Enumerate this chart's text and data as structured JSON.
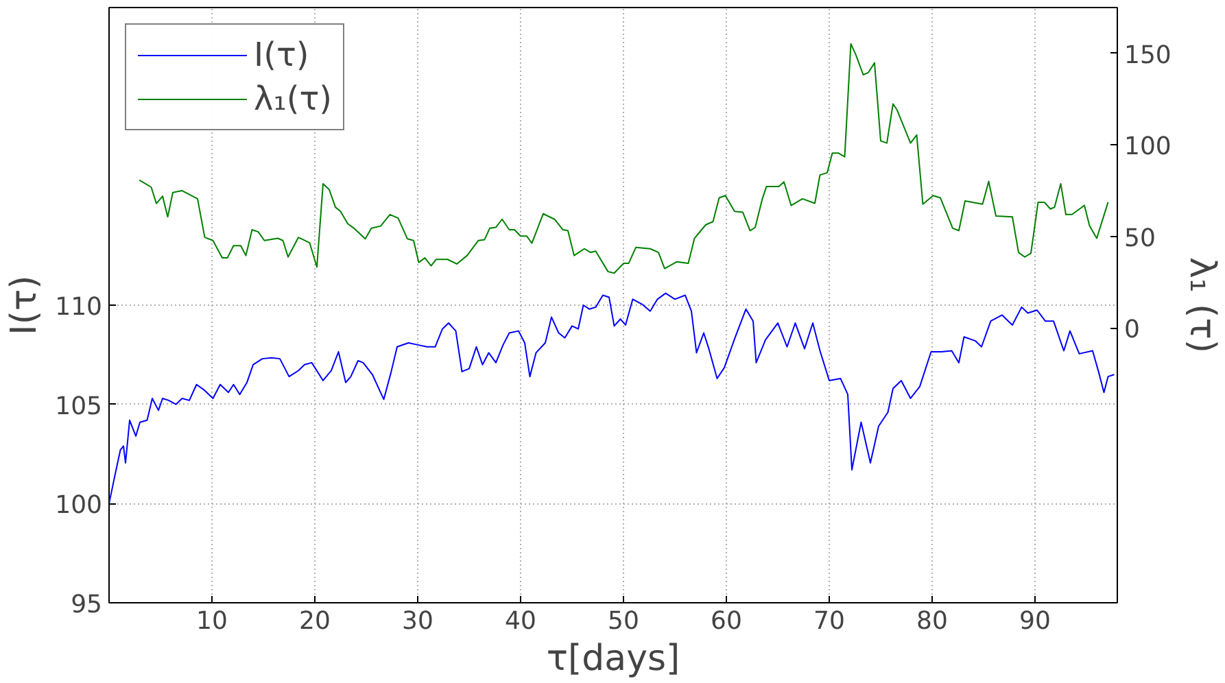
{
  "chart_data": {
    "type": "line",
    "xlabel": "τ[days]",
    "ylabel": "I(τ)",
    "y2label": "λ₁ (τ)",
    "xlim": [
      0,
      98
    ],
    "xticks": [
      10,
      20,
      30,
      40,
      50,
      60,
      70,
      80,
      90
    ],
    "ylim": [
      95,
      125
    ],
    "yticks": [
      95,
      100,
      105,
      110
    ],
    "y2lim": [
      -150,
      175
    ],
    "y2ticks": [
      0,
      50,
      100,
      150
    ],
    "grid": true,
    "legend": "top left",
    "line_style": "solid",
    "marker": "none",
    "series": [
      {
        "name": "I(τ)",
        "color": "#0000ff",
        "axis": "y",
        "x": [
          0,
          0.6,
          1.1,
          1.4,
          1.6,
          2.0,
          2.6,
          3.0,
          3.7,
          4.2,
          4.8,
          5.2,
          5.8,
          6.5,
          7.1,
          7.8,
          8.5,
          9.3,
          10.1,
          10.8,
          11.6,
          12.1,
          12.7,
          13.4,
          14.0,
          14.9,
          15.8,
          16.6,
          17.5,
          18.4,
          19.0,
          19.7,
          20.8,
          21.6,
          22.3,
          23.0,
          23.5,
          24.2,
          24.7,
          25.6,
          26.3,
          26.7,
          27.4,
          28.0,
          29.1,
          30.0,
          30.9,
          31.7,
          32.4,
          33.0,
          33.7,
          34.3,
          35.0,
          35.7,
          36.3,
          36.9,
          37.6,
          38.3,
          38.9,
          39.8,
          40.4,
          40.9,
          41.5,
          42.4,
          43.0,
          43.7,
          44.3,
          45.0,
          45.6,
          46.1,
          46.7,
          47.3,
          48.0,
          48.6,
          49.1,
          49.7,
          50.2,
          50.9,
          51.8,
          52.6,
          53.3,
          54.1,
          55.0,
          56.0,
          56.6,
          57.1,
          57.8,
          58.3,
          59.1,
          59.8,
          60.8,
          61.9,
          62.6,
          62.9,
          63.8,
          65.0,
          65.9,
          66.7,
          67.6,
          68.4,
          69.1,
          70.0,
          71.1,
          71.8,
          72.2,
          73.1,
          74.0,
          74.8,
          75.7,
          76.2,
          77.0,
          77.9,
          78.8,
          79.9,
          80.9,
          81.9,
          82.6,
          83.1,
          84.2,
          84.8,
          85.7,
          86.8,
          87.8,
          88.7,
          89.3,
          90.2,
          91.0,
          91.8,
          92.8,
          93.4,
          94.3,
          95.6,
          96.2,
          96.7,
          97.1,
          97.7
        ],
        "values": [
          100.0,
          101.5,
          102.7,
          102.9,
          102.05,
          104.2,
          103.4,
          104.1,
          104.2,
          105.3,
          104.7,
          105.3,
          105.2,
          105.0,
          105.3,
          105.2,
          106.0,
          105.7,
          105.3,
          106.0,
          105.6,
          106.0,
          105.5,
          106.1,
          107.0,
          107.3,
          107.35,
          107.3,
          106.4,
          106.7,
          107.0,
          107.1,
          106.2,
          106.7,
          107.65,
          106.1,
          106.4,
          107.2,
          107.1,
          106.5,
          105.7,
          105.25,
          106.6,
          107.9,
          108.1,
          108.0,
          107.9,
          107.9,
          108.8,
          109.1,
          108.7,
          106.65,
          106.8,
          107.9,
          107.0,
          107.6,
          107.1,
          108.0,
          108.6,
          108.7,
          108.1,
          106.4,
          107.6,
          108.1,
          109.4,
          108.6,
          108.35,
          108.95,
          108.8,
          110.0,
          109.8,
          109.9,
          110.5,
          110.4,
          108.95,
          109.3,
          109.0,
          110.3,
          110.05,
          109.7,
          110.3,
          110.6,
          110.3,
          110.5,
          109.7,
          107.6,
          108.6,
          107.8,
          106.3,
          106.85,
          108.3,
          109.8,
          109.2,
          107.1,
          108.25,
          109.1,
          107.9,
          109.1,
          107.8,
          109.1,
          107.7,
          106.2,
          106.3,
          105.5,
          101.7,
          104.1,
          102.05,
          103.9,
          104.6,
          105.8,
          106.2,
          105.3,
          105.9,
          107.65,
          107.65,
          107.7,
          107.1,
          108.4,
          108.2,
          107.9,
          109.2,
          109.5,
          109.0,
          109.9,
          109.6,
          109.75,
          109.2,
          109.2,
          107.7,
          108.7,
          107.55,
          107.7,
          106.6,
          105.6,
          106.4,
          106.5
        ]
      },
      {
        "name": "λ₁(τ)",
        "color": "#008000",
        "axis": "y2",
        "x": [
          2.95,
          4.1,
          4.6,
          5.2,
          5.7,
          6.2,
          7.1,
          8.6,
          9.3,
          10.1,
          11.0,
          11.5,
          12.1,
          12.8,
          13.3,
          13.9,
          14.5,
          15.1,
          16.4,
          16.9,
          17.4,
          18.4,
          19.5,
          20.2,
          20.8,
          21.4,
          22.0,
          22.5,
          23.2,
          23.8,
          24.9,
          25.5,
          26.4,
          27.3,
          28.1,
          29.0,
          29.6,
          30.1,
          30.7,
          31.3,
          31.8,
          32.9,
          33.8,
          34.8,
          35.9,
          36.5,
          37.0,
          37.6,
          38.2,
          38.9,
          39.4,
          40.0,
          40.6,
          41.1,
          42.2,
          43.3,
          44.1,
          44.6,
          45.2,
          46.2,
          46.8,
          47.3,
          48.5,
          49.1,
          50.0,
          50.5,
          51.2,
          52.6,
          53.4,
          54.0,
          55.2,
          56.3,
          56.9,
          58.0,
          58.7,
          59.3,
          59.9,
          60.8,
          61.6,
          62.3,
          62.8,
          63.5,
          63.9,
          65.1,
          65.6,
          66.3,
          67.4,
          68.6,
          69.1,
          69.8,
          70.3,
          70.9,
          71.5,
          72.1,
          72.6,
          73.3,
          73.8,
          74.4,
          75.0,
          75.6,
          76.2,
          76.6,
          77.9,
          78.5,
          79.1,
          80.1,
          80.8,
          82.0,
          82.6,
          83.2,
          84.9,
          85.5,
          86.2,
          87.8,
          88.4,
          89.0,
          89.6,
          90.3,
          90.9,
          91.5,
          91.9,
          92.5,
          93.0,
          93.6,
          94.8,
          95.3,
          96.0,
          97.1
        ],
        "values": [
          80.8,
          76.9,
          68,
          72,
          60.7,
          74,
          75,
          70.6,
          49.5,
          47.8,
          38.3,
          38.3,
          45,
          45,
          39.6,
          53.7,
          52.5,
          47.8,
          49,
          47.8,
          38.8,
          49.5,
          46.5,
          33.3,
          78.8,
          75.6,
          66,
          63.7,
          57,
          54.5,
          48.7,
          54.5,
          55.7,
          62,
          60,
          48.7,
          47.8,
          35.8,
          38.3,
          34,
          37.5,
          37.5,
          35,
          39.6,
          47.8,
          48.3,
          54.5,
          55,
          59.4,
          53.7,
          53.7,
          50.2,
          50.2,
          46.3,
          62.4,
          59.4,
          53.7,
          53.2,
          39.6,
          43.3,
          41.3,
          42,
          30.8,
          30,
          35.3,
          35.3,
          44,
          43.3,
          41.3,
          32.5,
          36.2,
          35.3,
          49,
          56.4,
          58.1,
          71.1,
          72.3,
          63.7,
          63.2,
          53.2,
          54.9,
          70.6,
          77.3,
          77.3,
          79.8,
          66.9,
          70.6,
          68.1,
          83.6,
          84.8,
          95.5,
          95.5,
          93.5,
          155.2,
          149,
          138.3,
          139.5,
          144.8,
          102.2,
          101,
          122.4,
          119,
          101,
          105.4,
          67.6,
          72.3,
          71.1,
          54.5,
          53.2,
          69.4,
          67.6,
          80.1,
          61.2,
          60.7,
          41.3,
          38.8,
          40.8,
          68.7,
          68.7,
          65,
          66,
          78.8,
          62,
          62,
          67,
          55.8,
          49,
          68.7
        ]
      }
    ]
  }
}
